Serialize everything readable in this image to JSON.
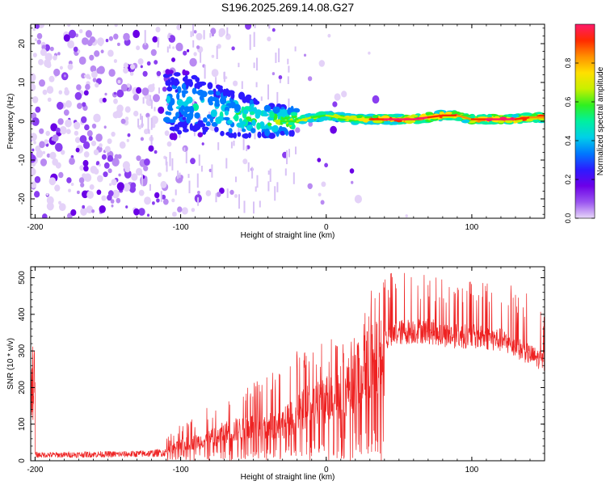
{
  "title": "S196.2025.269.14.08.G27",
  "chart_data": [
    {
      "type": "heatmap",
      "xlabel": "Height of straight line (km)",
      "ylabel": "Frequency (Hz)",
      "xlim": [
        -203,
        150
      ],
      "ylim": [
        -25,
        25
      ],
      "xticks": [
        "-200",
        "-100",
        "0",
        "100"
      ],
      "yticks": [
        "-20",
        "-10",
        "0",
        "10",
        "20"
      ],
      "colorbar": {
        "label": "Normalized spectral amplitude",
        "range": [
          0,
          1
        ],
        "ticks": [
          "0.0",
          "0.2",
          "0.4",
          "0.6",
          "0.8"
        ],
        "colors": [
          "#e8d8f8",
          "#9a55f0",
          "#6d00e8",
          "#2d1bff",
          "#0078ff",
          "#00d0e8",
          "#00f0a0",
          "#30f020",
          "#c8f000",
          "#ffe000",
          "#ff9000",
          "#ff2a00",
          "#ff1a6a"
        ]
      },
      "ridge": [
        {
          "x": -200,
          "f": 0,
          "amp": 0.05
        },
        {
          "x": -150,
          "f": 0,
          "amp": 0.08
        },
        {
          "x": -100,
          "f": 5,
          "amp": 0.25
        },
        {
          "x": -90,
          "f": 4,
          "amp": 0.3
        },
        {
          "x": -80,
          "f": 3,
          "amp": 0.3
        },
        {
          "x": -70,
          "f": 2,
          "amp": 0.35
        },
        {
          "x": -60,
          "f": 1.5,
          "amp": 0.4
        },
        {
          "x": -50,
          "f": 1,
          "amp": 0.45
        },
        {
          "x": -40,
          "f": 0,
          "amp": 0.45
        },
        {
          "x": -30,
          "f": 0,
          "amp": 0.5
        },
        {
          "x": -20,
          "f": 0,
          "amp": 0.6
        },
        {
          "x": -10,
          "f": 1,
          "amp": 0.55
        },
        {
          "x": 0,
          "f": 1.5,
          "amp": 0.55
        },
        {
          "x": 10,
          "f": 1,
          "amp": 0.6
        },
        {
          "x": 20,
          "f": 0.5,
          "amp": 0.65
        },
        {
          "x": 30,
          "f": 0.5,
          "amp": 0.8
        },
        {
          "x": 40,
          "f": 0.5,
          "amp": 0.9
        },
        {
          "x": 50,
          "f": 0.5,
          "amp": 0.95
        },
        {
          "x": 60,
          "f": 0.5,
          "amp": 0.95
        },
        {
          "x": 70,
          "f": 1,
          "amp": 0.9
        },
        {
          "x": 80,
          "f": 1.5,
          "amp": 0.9
        },
        {
          "x": 90,
          "f": 1.5,
          "amp": 0.85
        },
        {
          "x": 100,
          "f": 0.5,
          "amp": 0.75
        },
        {
          "x": 110,
          "f": 0.5,
          "amp": 0.9
        },
        {
          "x": 120,
          "f": 0.5,
          "amp": 0.92
        },
        {
          "x": 130,
          "f": 0.5,
          "amp": 0.9
        },
        {
          "x": 140,
          "f": 1,
          "amp": 0.8
        },
        {
          "x": 150,
          "f": 1,
          "amp": 0.75
        }
      ]
    },
    {
      "type": "line",
      "xlabel": "Height of straight line (km)",
      "ylabel": "SNR (10 * v/v)",
      "xlim": [
        -203,
        150
      ],
      "ylim": [
        0,
        530
      ],
      "xticks": [
        "-200",
        "-100",
        "0",
        "100"
      ],
      "yticks": [
        "0",
        "100",
        "200",
        "300",
        "400",
        "500"
      ],
      "color": "#ee2222",
      "series": [
        {
          "name": "SNR",
          "x": [
            -200,
            -180,
            -160,
            -140,
            -120,
            -110,
            -100,
            -90,
            -80,
            -70,
            -60,
            -50,
            -40,
            -30,
            -20,
            -10,
            0,
            10,
            20,
            30,
            40,
            50,
            60,
            70,
            80,
            90,
            100,
            110,
            120,
            130,
            140,
            150
          ],
          "envelope": [
            20,
            20,
            22,
            22,
            25,
            28,
            50,
            60,
            70,
            90,
            100,
            110,
            110,
            120,
            150,
            180,
            200,
            220,
            260,
            310,
            330,
            350,
            355,
            355,
            345,
            340,
            340,
            335,
            330,
            310,
            290,
            270
          ],
          "peaks": [
            30,
            30,
            35,
            40,
            45,
            60,
            100,
            120,
            150,
            170,
            200,
            220,
            230,
            280,
            300,
            310,
            330,
            350,
            360,
            480,
            510,
            520,
            525,
            510,
            500,
            490,
            500,
            510,
            500,
            480,
            450,
            420
          ]
        }
      ]
    }
  ]
}
